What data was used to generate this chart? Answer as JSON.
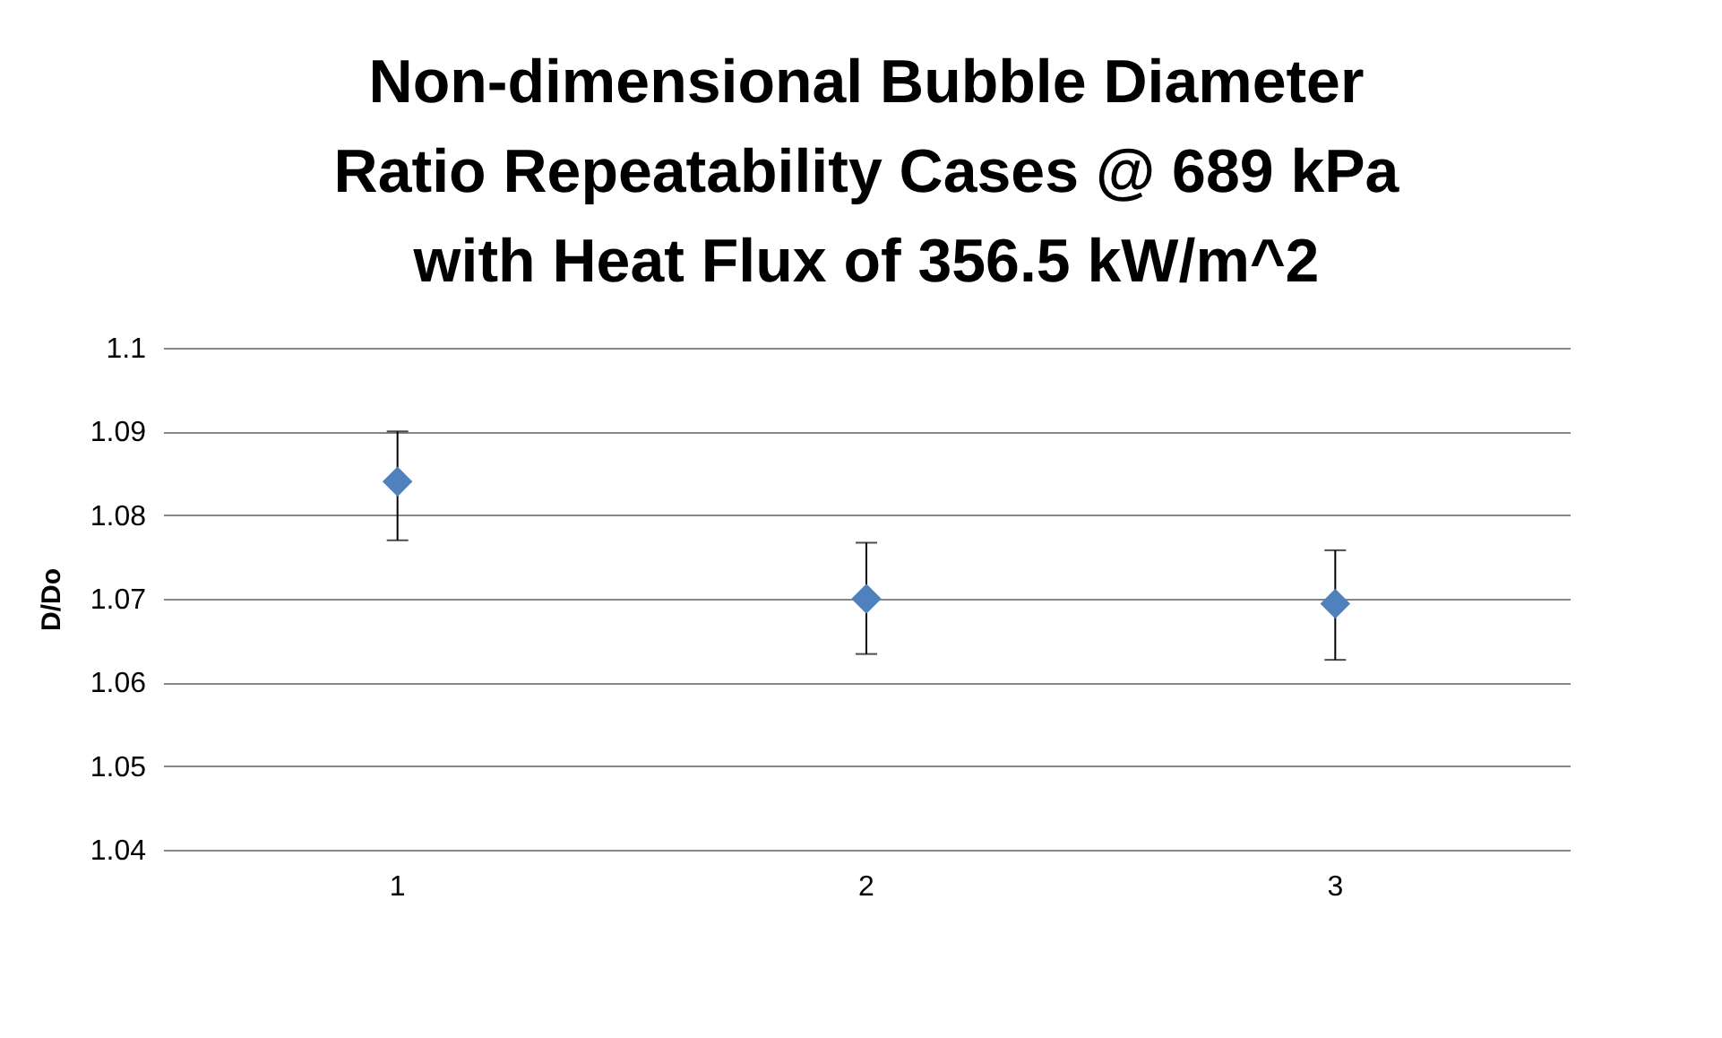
{
  "chart_data": {
    "type": "scatter",
    "title": "Non-dimensional Bubble Diameter Ratio Repeatability Cases  @ 689 kPa with Heat Flux of 356.5 kW/m^2",
    "ylabel": "D/Do",
    "categories": [
      "1",
      "2",
      "3"
    ],
    "series": [
      {
        "color": "#4f81bd",
        "values": [
          1.084,
          1.07,
          1.0694
        ],
        "errors": [
          [
            1.077,
            1.09
          ],
          [
            1.0634,
            1.0767
          ],
          [
            1.0627,
            1.0758
          ]
        ]
      }
    ],
    "ylim": [
      1.04,
      1.1
    ],
    "yticks": [
      1.04,
      1.05,
      1.06,
      1.07,
      1.08,
      1.09,
      1.1
    ],
    "grid": "y",
    "marker": "diamond",
    "legend": false
  }
}
